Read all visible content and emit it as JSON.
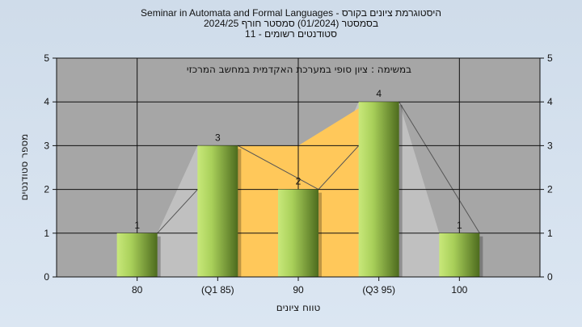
{
  "header": {
    "title_line1": "היסטוגרמת ציונים בקורס - Seminar in Automata and Formal Languages",
    "title_line2": "בסמסטר  (01/2024)  סמסטר חורף  2024/25",
    "title_line3": "סטודנטים רשומים - 11"
  },
  "chart_data": {
    "type": "bar",
    "title": "היסטוגרמת ציונים בקורס - Seminar in Automata and Formal Languages",
    "annotation": "במשימה : ציון סופי במערכת האקדמית במחשב המרכזי",
    "categories": [
      "80",
      "(Q1 85)",
      "90",
      "(Q3 95)",
      "100"
    ],
    "values": [
      1,
      3,
      2,
      4,
      1
    ],
    "data_labels": [
      "1",
      "3",
      "2",
      "4",
      "1"
    ],
    "xlabel": "טווח ציונים",
    "ylabel": "מספר סטודנטים",
    "ylim": [
      0,
      5
    ],
    "yticks": [
      "0",
      "1",
      "2",
      "3",
      "4",
      "5"
    ],
    "grid": true,
    "colors": {
      "plot_bg": "#a6a6a6",
      "bar_light": "#c8e87a",
      "bar_dark": "#4d6b1e",
      "background_area": "#c0c0c0",
      "iqr_area": "#ffc85a"
    }
  }
}
